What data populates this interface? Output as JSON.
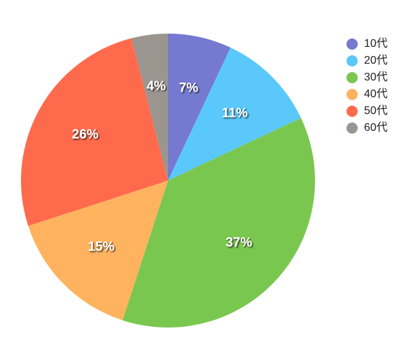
{
  "chart_data": {
    "type": "pie",
    "categories": [
      "10代",
      "20代",
      "30代",
      "40代",
      "50代",
      "60代"
    ],
    "values": [
      7,
      11,
      37,
      15,
      26,
      4
    ],
    "value_labels": [
      "7%",
      "11%",
      "37%",
      "15%",
      "26%",
      "4%"
    ],
    "colors": [
      "#7579d0",
      "#5ac8fa",
      "#7ac74f",
      "#ffb35e",
      "#ff6a4d",
      "#9b958f"
    ],
    "legend": "top-right"
  }
}
